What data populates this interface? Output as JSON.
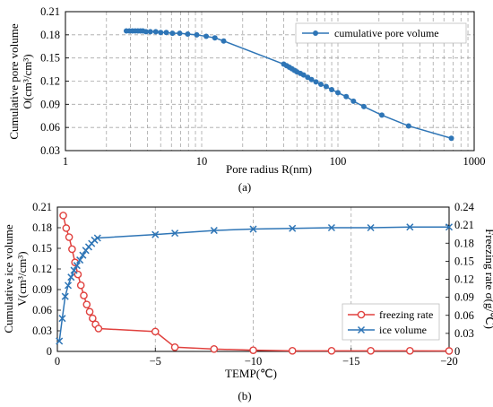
{
  "colors": {
    "series_a": "#2e75b6",
    "freezing": "#e0413e",
    "ice": "#2e75b6",
    "grid": "#a6a6a6",
    "axis": "#000000"
  },
  "chart_data": [
    {
      "type": "line",
      "panel_label": "(a)",
      "xlabel": "Pore radius R(nm)",
      "ylabel_lines": [
        "Cumulative pore volume",
        "O(cm³/cm³)"
      ],
      "xscale": "log",
      "xlim": [
        1,
        1000
      ],
      "ylim": [
        0.03,
        0.21
      ],
      "x_tick_labels": [
        "1",
        "10",
        "100",
        "1000"
      ],
      "y_tick_labels": [
        "0.03",
        "0.06",
        "0.09",
        "0.12",
        "0.15",
        "0.18",
        "0.21"
      ],
      "grid": true,
      "legend_position": "top-right",
      "series": [
        {
          "name": "cumulative pore volume",
          "marker": "circle",
          "x": [
            2.8,
            2.95,
            3.1,
            3.25,
            3.4,
            3.55,
            3.7,
            3.9,
            4.2,
            4.6,
            5.0,
            5.5,
            6.1,
            6.9,
            7.9,
            9.2,
            10.8,
            12.5,
            14.5,
            40,
            42,
            44,
            46,
            48,
            50,
            53,
            56,
            60,
            64,
            69,
            75,
            82,
            90,
            100,
            115,
            130,
            155,
            210,
            330,
            680
          ],
          "y": [
            0.185,
            0.185,
            0.185,
            0.185,
            0.185,
            0.185,
            0.185,
            0.184,
            0.184,
            0.184,
            0.183,
            0.183,
            0.182,
            0.182,
            0.181,
            0.18,
            0.178,
            0.176,
            0.172,
            0.142,
            0.14,
            0.138,
            0.136,
            0.134,
            0.132,
            0.13,
            0.128,
            0.125,
            0.122,
            0.119,
            0.116,
            0.113,
            0.109,
            0.105,
            0.1,
            0.094,
            0.087,
            0.076,
            0.062,
            0.046
          ]
        }
      ]
    },
    {
      "type": "line",
      "panel_label": "(b)",
      "xlabel": "TEMP(℃)",
      "ylabel_left_lines": [
        "Cumulative ice volume",
        "V(cm³/cm³)"
      ],
      "ylabel_right": "Freezing rate σ(g/℃)",
      "xlim": [
        0,
        -20
      ],
      "ylim_left": [
        0,
        0.21
      ],
      "ylim_right": [
        0,
        0.24
      ],
      "x_tick_labels": [
        "0",
        "−5",
        "−10",
        "−15",
        "−20"
      ],
      "y_left_tick_labels": [
        "0",
        "0.03",
        "0.06",
        "0.09",
        "0.12",
        "0.15",
        "0.18",
        "0.21"
      ],
      "y_right_tick_labels": [
        "0",
        "0.03",
        "0.06",
        "0.09",
        "0.12",
        "0.15",
        "0.18",
        "0.21",
        "0.24"
      ],
      "grid": "vertical",
      "legend_position": "bottom-right",
      "series": [
        {
          "name": "freezing rate",
          "axis": "right",
          "marker": "open-circle",
          "x": [
            -0.3,
            -0.45,
            -0.6,
            -0.75,
            -0.9,
            -1.05,
            -1.2,
            -1.35,
            -1.5,
            -1.65,
            -1.8,
            -1.95,
            -2.1,
            -5,
            -6,
            -8,
            -10,
            -12,
            -14,
            -16,
            -18,
            -20
          ],
          "y": [
            0.226,
            0.205,
            0.19,
            0.17,
            0.148,
            0.128,
            0.11,
            0.093,
            0.078,
            0.066,
            0.055,
            0.045,
            0.038,
            0.033,
            0.007,
            0.004,
            0.002,
            0.001,
            0.001,
            0.001,
            0.001,
            0.0008
          ]
        },
        {
          "name": "ice volume",
          "axis": "left",
          "marker": "x",
          "x": [
            -0.1,
            -0.25,
            -0.4,
            -0.55,
            -0.7,
            -0.85,
            -1.0,
            -1.15,
            -1.3,
            -1.45,
            -1.6,
            -1.75,
            -1.9,
            -2.05,
            -5,
            -6,
            -8,
            -10,
            -12,
            -14,
            -16,
            -18,
            -20
          ],
          "y": [
            0.015,
            0.048,
            0.08,
            0.096,
            0.108,
            0.118,
            0.125,
            0.133,
            0.14,
            0.147,
            0.152,
            0.157,
            0.162,
            0.165,
            0.17,
            0.172,
            0.176,
            0.178,
            0.179,
            0.18,
            0.18,
            0.181,
            0.181
          ]
        }
      ]
    }
  ]
}
